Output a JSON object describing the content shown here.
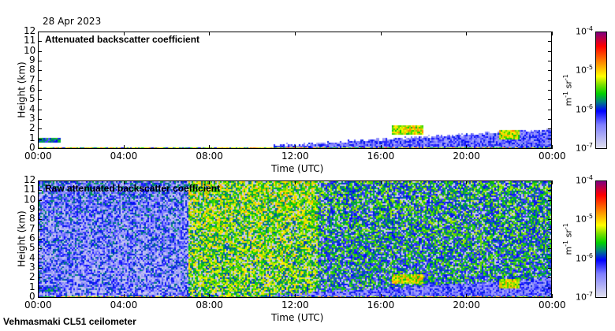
{
  "date": "28 Apr 2023",
  "footer": "Vehmasmaki CL51 ceilometer",
  "chart_data": [
    {
      "type": "heatmap",
      "title": "Attenuated backscatter coefficient",
      "xlabel": "Time (UTC)",
      "ylabel": "Height (km)",
      "xticks": [
        "00:00",
        "04:00",
        "08:00",
        "12:00",
        "16:00",
        "20:00",
        "00:00"
      ],
      "yticks": [
        "0",
        "1",
        "2",
        "3",
        "4",
        "5",
        "6",
        "7",
        "8",
        "9",
        "10",
        "11",
        "12"
      ],
      "ylim": [
        0,
        12
      ],
      "colorbar": {
        "label": "m-1 sr-1",
        "ticks": [
          "10-7",
          "10-6",
          "10-5",
          "10-4"
        ],
        "scale": "log",
        "range": [
          1e-07,
          0.0001
        ]
      }
    },
    {
      "type": "heatmap",
      "title": "Raw attenuated backscatter coefficient",
      "xlabel": "Time (UTC)",
      "ylabel": "Height (km)",
      "xticks": [
        "00:00",
        "04:00",
        "08:00",
        "12:00",
        "16:00",
        "20:00",
        "00:00"
      ],
      "yticks": [
        "0",
        "1",
        "2",
        "3",
        "4",
        "5",
        "6",
        "7",
        "8",
        "9",
        "10",
        "11",
        "12"
      ],
      "ylim": [
        0,
        12
      ],
      "colorbar": {
        "label": "m-1 sr-1",
        "ticks": [
          "10-7",
          "10-6",
          "10-5",
          "10-4"
        ],
        "scale": "log",
        "range": [
          1e-07,
          0.0001
        ]
      }
    }
  ]
}
